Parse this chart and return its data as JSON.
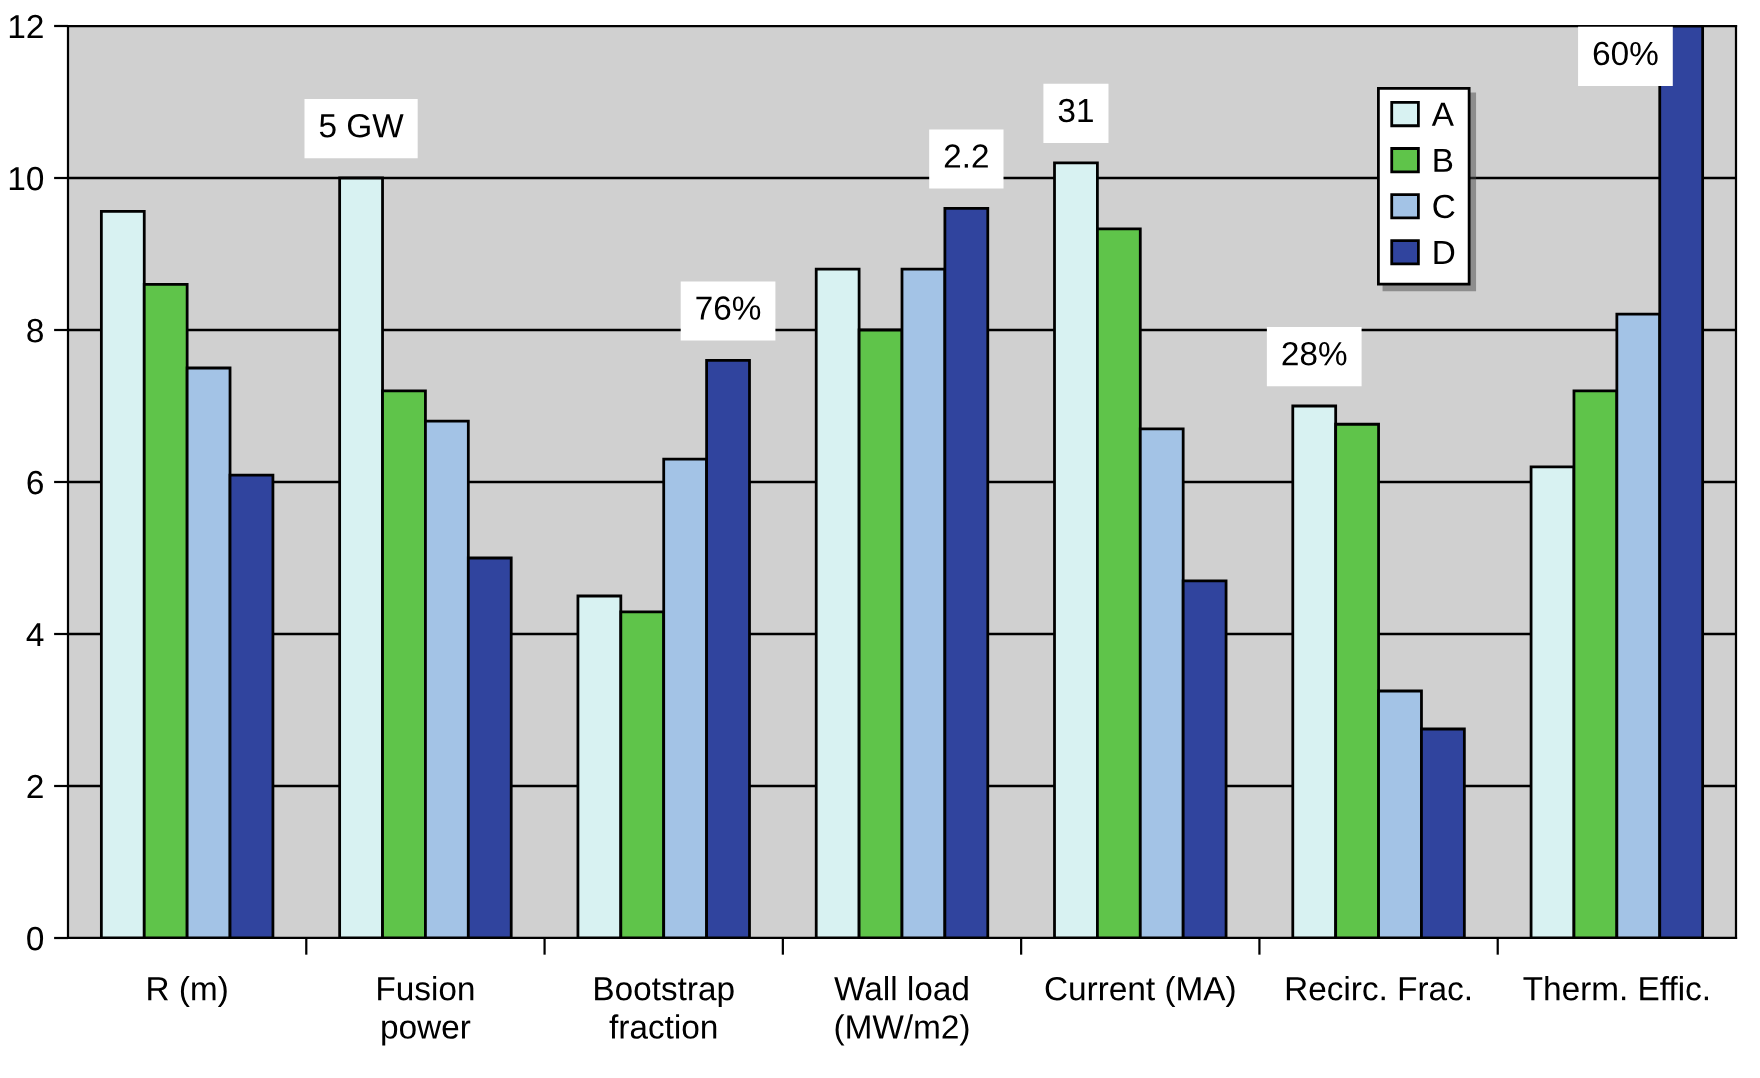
{
  "chart_data": {
    "type": "bar",
    "categories": [
      "R (m)",
      "Fusion\npower",
      "Bootstrap\nfraction",
      "Wall load\n(MW/m2)",
      "Current (MA)",
      "Recirc. Frac.",
      "Therm. Effic."
    ],
    "series": [
      {
        "name": "A",
        "color": "#d8f2f2",
        "values": [
          9.56,
          10.0,
          4.5,
          8.8,
          10.2,
          7.0,
          6.2
        ]
      },
      {
        "name": "B",
        "color": "#5fc44a",
        "values": [
          8.6,
          7.2,
          4.29,
          8.0,
          9.33,
          6.76,
          7.2
        ]
      },
      {
        "name": "C",
        "color": "#a3c3e6",
        "values": [
          7.5,
          6.8,
          6.3,
          8.8,
          6.7,
          3.25,
          8.21
        ]
      },
      {
        "name": "D",
        "color": "#30449e",
        "values": [
          6.09,
          5.0,
          7.6,
          9.6,
          4.7,
          2.75,
          12.0
        ]
      }
    ],
    "annotations": [
      "5 GW",
      "76%",
      "2.2",
      "31",
      "28%",
      "60%"
    ],
    "ylim": [
      0,
      12
    ],
    "yticks": [
      0,
      2,
      4,
      6,
      8,
      10,
      12
    ],
    "grid": "y",
    "legend": "top right"
  }
}
